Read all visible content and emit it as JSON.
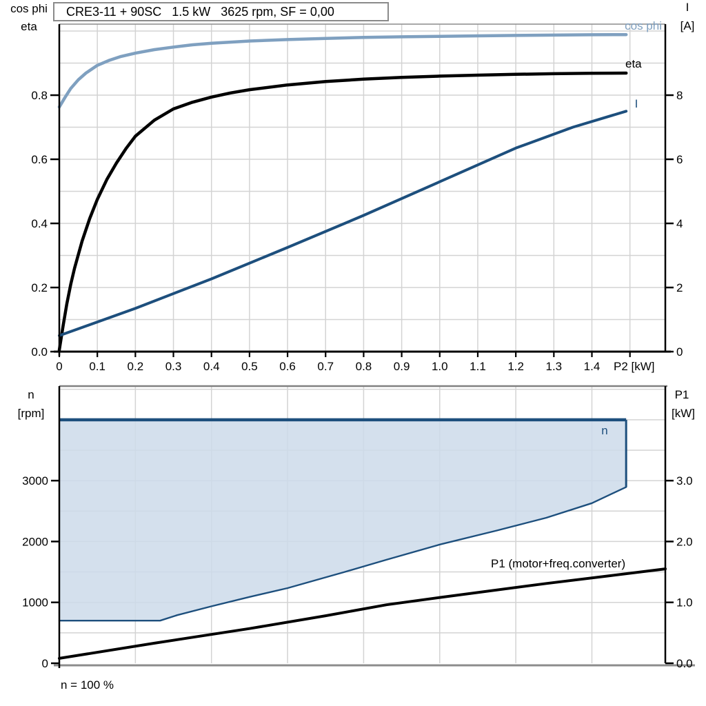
{
  "colors": {
    "cos_phi": "#7FA0C0",
    "dark_blue": "#1D4F7D",
    "envelope_fill": "#CDDBEA",
    "grid": "#D3D3D3",
    "axis": "#000000",
    "frame_gray": "#8C8C8C"
  },
  "chart_data": [
    {
      "id": "motor-curves",
      "type": "line",
      "title": "CRE3-11 + 90SC   1.5 kW   3625 rpm, SF = 0,00",
      "x_axis": {
        "label": "P2 [kW]",
        "min": 0,
        "max": 1.593,
        "grid_step": 0.1,
        "tick_values": [
          0,
          0.1,
          0.2,
          0.3,
          0.4,
          0.5,
          0.6,
          0.7,
          0.8,
          0.9,
          1.0,
          1.1,
          1.2,
          1.3,
          1.4
        ],
        "tick_labels": [
          "0",
          "0.1",
          "0.2",
          "0.3",
          "0.4",
          "0.5",
          "0.6",
          "0.7",
          "0.8",
          "0.9",
          "1.0",
          "1.1",
          "1.2",
          "1.3",
          "1.4"
        ]
      },
      "y_left": {
        "label_line1": "cos phi",
        "label_line2": "eta",
        "min": 0,
        "max": 1.0216,
        "grid_step": 0.1,
        "tick_values": [
          0,
          0.2,
          0.4,
          0.6,
          0.8
        ],
        "tick_labels": [
          "0.0",
          "0.2",
          "0.4",
          "0.6",
          "0.8"
        ]
      },
      "y_right": {
        "label_line1": "I",
        "label_line2": "[A]",
        "min": 0,
        "max": 10.216,
        "tick_values": [
          0,
          2,
          4,
          6,
          8
        ],
        "tick_labels": [
          "0",
          "2",
          "4",
          "6",
          "8"
        ]
      },
      "series": [
        {
          "name": "cos phi",
          "axis": "left",
          "points": [
            [
              0,
              0.763
            ],
            [
              0.015,
              0.793
            ],
            [
              0.03,
              0.821
            ],
            [
              0.05,
              0.848
            ],
            [
              0.07,
              0.869
            ],
            [
              0.1,
              0.893
            ],
            [
              0.13,
              0.908
            ],
            [
              0.16,
              0.92
            ],
            [
              0.2,
              0.931
            ],
            [
              0.25,
              0.942
            ],
            [
              0.3,
              0.95
            ],
            [
              0.35,
              0.957
            ],
            [
              0.4,
              0.962
            ],
            [
              0.5,
              0.969
            ],
            [
              0.6,
              0.9735
            ],
            [
              0.7,
              0.977
            ],
            [
              0.8,
              0.98
            ],
            [
              0.9,
              0.982
            ],
            [
              1.0,
              0.9835
            ],
            [
              1.1,
              0.985
            ],
            [
              1.2,
              0.9863
            ],
            [
              1.3,
              0.9875
            ],
            [
              1.4,
              0.9885
            ],
            [
              1.49,
              0.989
            ]
          ]
        },
        {
          "name": "eta",
          "axis": "left",
          "points": [
            [
              0,
              0.005
            ],
            [
              0.01,
              0.08
            ],
            [
              0.02,
              0.15
            ],
            [
              0.03,
              0.21
            ],
            [
              0.04,
              0.26
            ],
            [
              0.06,
              0.345
            ],
            [
              0.08,
              0.415
            ],
            [
              0.1,
              0.475
            ],
            [
              0.125,
              0.537
            ],
            [
              0.15,
              0.588
            ],
            [
              0.175,
              0.633
            ],
            [
              0.2,
              0.672
            ],
            [
              0.25,
              0.722
            ],
            [
              0.3,
              0.757
            ],
            [
              0.35,
              0.778
            ],
            [
              0.4,
              0.794
            ],
            [
              0.45,
              0.807
            ],
            [
              0.5,
              0.817
            ],
            [
              0.6,
              0.832
            ],
            [
              0.7,
              0.8425
            ],
            [
              0.8,
              0.85
            ],
            [
              0.9,
              0.8555
            ],
            [
              1.0,
              0.8595
            ],
            [
              1.1,
              0.8625
            ],
            [
              1.2,
              0.865
            ],
            [
              1.3,
              0.867
            ],
            [
              1.4,
              0.8685
            ],
            [
              1.49,
              0.869
            ]
          ]
        },
        {
          "name": "I",
          "axis": "right",
          "points": [
            [
              0,
              0.5
            ],
            [
              0.2,
              1.35
            ],
            [
              0.4,
              2.27
            ],
            [
              0.6,
              3.25
            ],
            [
              0.8,
              4.25
            ],
            [
              1.0,
              5.3
            ],
            [
              1.2,
              6.35
            ],
            [
              1.35,
              7.0
            ],
            [
              1.49,
              7.5
            ]
          ]
        }
      ]
    },
    {
      "id": "speed-envelope",
      "type": "area+line",
      "x_axis": {
        "min": 0,
        "max": 1.593,
        "grid_step": 0.2
      },
      "y_left": {
        "label_line1": "n",
        "label_line2": "[rpm]",
        "min": 0,
        "max": 4553,
        "grid_step": 500,
        "tick_values": [
          0,
          1000,
          2000,
          3000
        ],
        "tick_labels": [
          "0",
          "1000",
          "2000",
          "3000"
        ]
      },
      "y_right": {
        "label_line1": "P1",
        "label_line2": "[kW]",
        "min": 0,
        "max": 4.553,
        "grid_step": 0.5,
        "tick_values": [
          0,
          1,
          2,
          3
        ],
        "tick_labels": [
          "0.0",
          "1.0",
          "2.0",
          "3.0"
        ]
      },
      "footnote": "n = 100 %",
      "series": [
        {
          "name": "n",
          "type": "area",
          "axis": "left",
          "top_value": 4000,
          "boundary_points": [
            [
              0,
              700
            ],
            [
              0.265,
              700
            ],
            [
              0.31,
              790
            ],
            [
              0.4,
              935
            ],
            [
              0.5,
              1090
            ],
            [
              0.6,
              1235
            ],
            [
              0.75,
              1500
            ],
            [
              0.86,
              1700
            ],
            [
              1.0,
              1950
            ],
            [
              1.15,
              2180
            ],
            [
              1.28,
              2390
            ],
            [
              1.4,
              2630
            ],
            [
              1.49,
              2895
            ]
          ]
        },
        {
          "name": "P1 (motor+freq.converter)",
          "type": "line",
          "axis": "right",
          "points": [
            [
              0,
              0.08
            ],
            [
              0.25,
              0.33
            ],
            [
              0.5,
              0.57
            ],
            [
              0.7,
              0.78
            ],
            [
              0.86,
              0.96
            ],
            [
              1.0,
              1.08
            ],
            [
              1.28,
              1.31
            ],
            [
              1.45,
              1.44
            ],
            [
              1.593,
              1.55
            ]
          ]
        }
      ]
    }
  ]
}
